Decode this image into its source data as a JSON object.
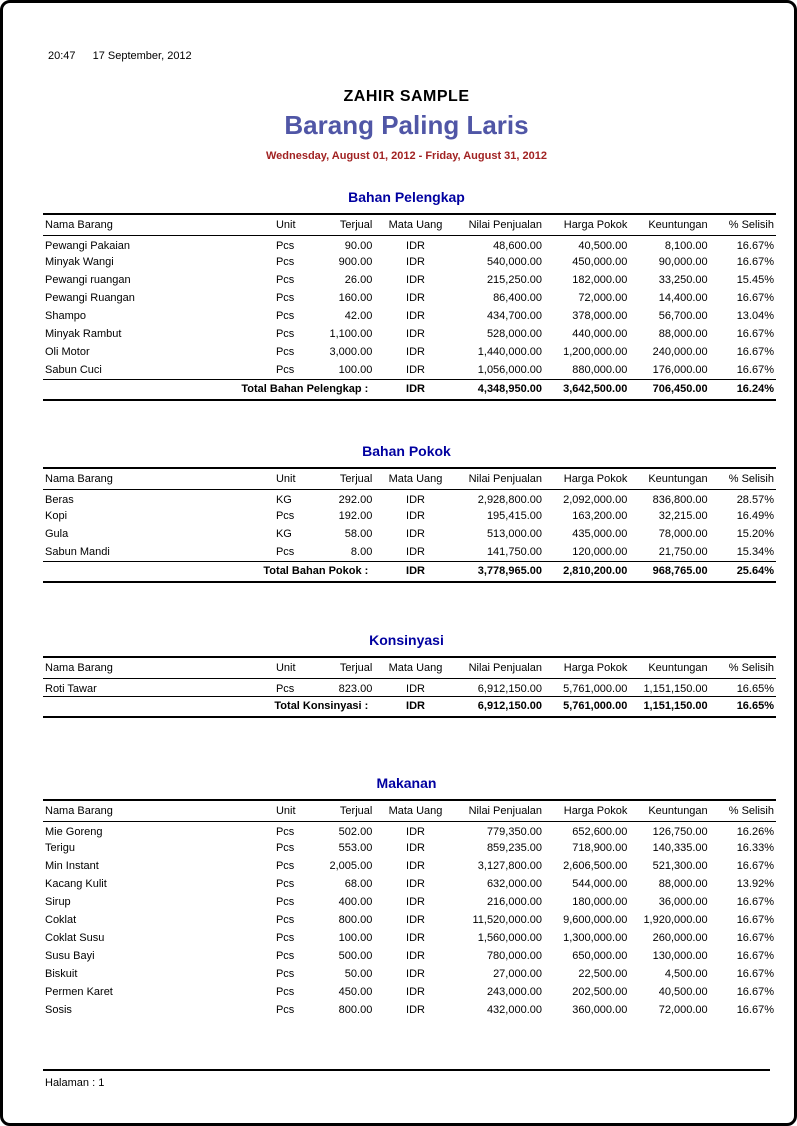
{
  "page": {
    "time": "20:47",
    "print_date": "17 September, 2012",
    "company": "ZAHIR SAMPLE",
    "title": "Barang Paling Laris",
    "period": "Wednesday, August 01, 2012 - Friday, August 31, 2012",
    "footer": "Halaman : 1"
  },
  "colors": {
    "title": "#5056a6",
    "period": "#a12222",
    "section_heading": "#0000a0"
  },
  "table": {
    "columns": [
      {
        "key": "nama-barang",
        "label": "Nama Barang",
        "align": "left"
      },
      {
        "key": "unit",
        "label": "Unit",
        "align": "left"
      },
      {
        "key": "terjual",
        "label": "Terjual",
        "align": "right"
      },
      {
        "key": "mata-uang",
        "label": "Mata Uang",
        "align": "center"
      },
      {
        "key": "nilai-penjualan",
        "label": "Nilai Penjualan",
        "align": "right"
      },
      {
        "key": "harga-pokok",
        "label": "Harga Pokok",
        "align": "right"
      },
      {
        "key": "keuntungan",
        "label": "Keuntungan",
        "align": "right"
      },
      {
        "key": "selisih",
        "label": "% Selisih",
        "align": "right"
      }
    ]
  },
  "sections": [
    {
      "heading": "Bahan Pelengkap",
      "rows": [
        [
          "Pewangi Pakaian",
          "Pcs",
          "90.00",
          "IDR",
          "48,600.00",
          "40,500.00",
          "8,100.00",
          "16.67%"
        ],
        [
          "Minyak Wangi",
          "Pcs",
          "900.00",
          "IDR",
          "540,000.00",
          "450,000.00",
          "90,000.00",
          "16.67%"
        ],
        [
          "Pewangi ruangan",
          "Pcs",
          "26.00",
          "IDR",
          "215,250.00",
          "182,000.00",
          "33,250.00",
          "15.45%"
        ],
        [
          "Pewangi Ruangan",
          "Pcs",
          "160.00",
          "IDR",
          "86,400.00",
          "72,000.00",
          "14,400.00",
          "16.67%"
        ],
        [
          "Shampo",
          "Pcs",
          "42.00",
          "IDR",
          "434,700.00",
          "378,000.00",
          "56,700.00",
          "13.04%"
        ],
        [
          "Minyak Rambut",
          "Pcs",
          "1,100.00",
          "IDR",
          "528,000.00",
          "440,000.00",
          "88,000.00",
          "16.67%"
        ],
        [
          "Oli Motor",
          "Pcs",
          "3,000.00",
          "IDR",
          "1,440,000.00",
          "1,200,000.00",
          "240,000.00",
          "16.67%"
        ],
        [
          "Sabun Cuci",
          "Pcs",
          "100.00",
          "IDR",
          "1,056,000.00",
          "880,000.00",
          "176,000.00",
          "16.67%"
        ]
      ],
      "total": {
        "label": "Total Bahan Pelengkap :",
        "currency": "IDR",
        "values": [
          "4,348,950.00",
          "3,642,500.00",
          "706,450.00",
          "16.24%"
        ]
      }
    },
    {
      "heading": "Bahan Pokok",
      "rows": [
        [
          "Beras",
          "KG",
          "292.00",
          "IDR",
          "2,928,800.00",
          "2,092,000.00",
          "836,800.00",
          "28.57%"
        ],
        [
          "Kopi",
          "Pcs",
          "192.00",
          "IDR",
          "195,415.00",
          "163,200.00",
          "32,215.00",
          "16.49%"
        ],
        [
          "Gula",
          "KG",
          "58.00",
          "IDR",
          "513,000.00",
          "435,000.00",
          "78,000.00",
          "15.20%"
        ],
        [
          "Sabun Mandi",
          "Pcs",
          "8.00",
          "IDR",
          "141,750.00",
          "120,000.00",
          "21,750.00",
          "15.34%"
        ]
      ],
      "total": {
        "label": "Total Bahan Pokok :",
        "currency": "IDR",
        "values": [
          "3,778,965.00",
          "2,810,200.00",
          "968,765.00",
          "25.64%"
        ]
      }
    },
    {
      "heading": "Konsinyasi",
      "rows": [
        [
          "Roti Tawar",
          "Pcs",
          "823.00",
          "IDR",
          "6,912,150.00",
          "5,761,000.00",
          "1,151,150.00",
          "16.65%"
        ]
      ],
      "total": {
        "label": "Total Konsinyasi :",
        "currency": "IDR",
        "values": [
          "6,912,150.00",
          "5,761,000.00",
          "1,151,150.00",
          "16.65%"
        ]
      }
    },
    {
      "heading": "Makanan",
      "rows": [
        [
          "Mie Goreng",
          "Pcs",
          "502.00",
          "IDR",
          "779,350.00",
          "652,600.00",
          "126,750.00",
          "16.26%"
        ],
        [
          "Terigu",
          "Pcs",
          "553.00",
          "IDR",
          "859,235.00",
          "718,900.00",
          "140,335.00",
          "16.33%"
        ],
        [
          "Min Instant",
          "Pcs",
          "2,005.00",
          "IDR",
          "3,127,800.00",
          "2,606,500.00",
          "521,300.00",
          "16.67%"
        ],
        [
          "Kacang Kulit",
          "Pcs",
          "68.00",
          "IDR",
          "632,000.00",
          "544,000.00",
          "88,000.00",
          "13.92%"
        ],
        [
          "Sirup",
          "Pcs",
          "400.00",
          "IDR",
          "216,000.00",
          "180,000.00",
          "36,000.00",
          "16.67%"
        ],
        [
          "Coklat",
          "Pcs",
          "800.00",
          "IDR",
          "11,520,000.00",
          "9,600,000.00",
          "1,920,000.00",
          "16.67%"
        ],
        [
          "Coklat Susu",
          "Pcs",
          "100.00",
          "IDR",
          "1,560,000.00",
          "1,300,000.00",
          "260,000.00",
          "16.67%"
        ],
        [
          "Susu Bayi",
          "Pcs",
          "500.00",
          "IDR",
          "780,000.00",
          "650,000.00",
          "130,000.00",
          "16.67%"
        ],
        [
          "Biskuit",
          "Pcs",
          "50.00",
          "IDR",
          "27,000.00",
          "22,500.00",
          "4,500.00",
          "16.67%"
        ],
        [
          "Permen Karet",
          "Pcs",
          "450.00",
          "IDR",
          "243,000.00",
          "202,500.00",
          "40,500.00",
          "16.67%"
        ],
        [
          "Sosis",
          "Pcs",
          "800.00",
          "IDR",
          "432,000.00",
          "360,000.00",
          "72,000.00",
          "16.67%"
        ]
      ],
      "total": null
    }
  ]
}
